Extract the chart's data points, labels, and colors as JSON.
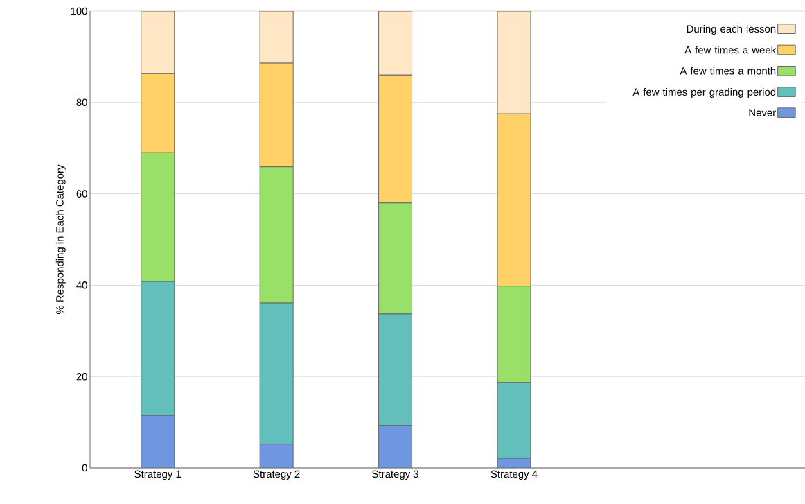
{
  "chart_data": {
    "type": "bar",
    "stacked": true,
    "ylabel": "% Responding in Each Category",
    "categories": [
      "Strategy 1",
      "Strategy 2",
      "Strategy 3",
      "Strategy 4"
    ],
    "series": [
      {
        "name": "Never",
        "color": "#6f96e0",
        "values": [
          11.5,
          5.2,
          9.3,
          2.1
        ]
      },
      {
        "name": "A few times per grading period",
        "color": "#63bfbc",
        "values": [
          29.3,
          30.9,
          24.4,
          16.6
        ]
      },
      {
        "name": "A few times a month",
        "color": "#98e067",
        "values": [
          28.2,
          29.8,
          24.3,
          21.1
        ]
      },
      {
        "name": "A few times a week",
        "color": "#ffd166",
        "values": [
          17.3,
          22.7,
          28.0,
          37.7
        ]
      },
      {
        "name": "During each lesson",
        "color": "#ffe6c4",
        "values": [
          13.7,
          11.4,
          14.0,
          22.5
        ]
      }
    ],
    "ylim": [
      0,
      100
    ],
    "yticks": [
      0,
      20,
      40,
      60,
      80,
      100
    ],
    "grid": "y",
    "legend": "top right"
  }
}
